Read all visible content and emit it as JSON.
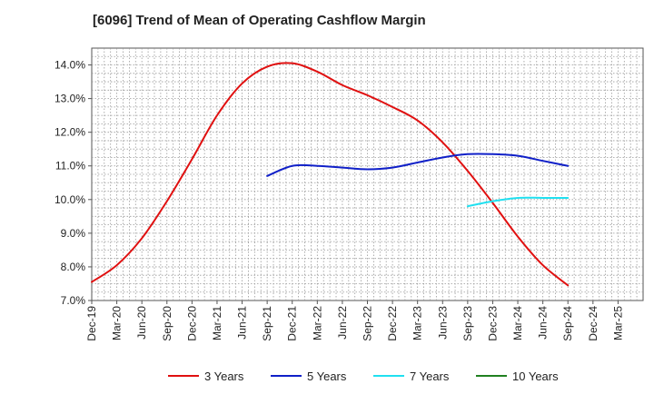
{
  "chart_data": {
    "type": "line",
    "title": "[6096]  Trend of Mean of Operating Cashflow Margin",
    "xlabel": "",
    "ylabel": "",
    "ylim": [
      7.0,
      14.5
    ],
    "yticks": [
      7.0,
      8.0,
      9.0,
      10.0,
      11.0,
      12.0,
      13.0,
      14.0
    ],
    "ytick_labels": [
      "7.0%",
      "8.0%",
      "9.0%",
      "10.0%",
      "11.0%",
      "12.0%",
      "13.0%",
      "14.0%"
    ],
    "categories": [
      "Dec-19",
      "Mar-20",
      "Jun-20",
      "Sep-20",
      "Dec-20",
      "Mar-21",
      "Jun-21",
      "Sep-21",
      "Dec-21",
      "Mar-22",
      "Jun-22",
      "Sep-22",
      "Dec-22",
      "Mar-23",
      "Jun-23",
      "Sep-23",
      "Dec-23",
      "Mar-24",
      "Jun-24",
      "Sep-24",
      "Dec-24",
      "Mar-25"
    ],
    "grid": true,
    "legend": "bottom",
    "series": [
      {
        "name": "3 Years",
        "color": "#e01010",
        "values": [
          7.55,
          8.05,
          8.85,
          9.95,
          11.2,
          12.5,
          13.45,
          13.95,
          14.05,
          13.8,
          13.4,
          13.1,
          12.75,
          12.35,
          11.7,
          10.85,
          9.9,
          8.9,
          8.05,
          7.45,
          null,
          null
        ]
      },
      {
        "name": "5 Years",
        "color": "#1020c8",
        "values": [
          null,
          null,
          null,
          null,
          null,
          null,
          null,
          10.7,
          11.0,
          11.0,
          10.95,
          10.9,
          10.95,
          11.1,
          11.25,
          11.35,
          11.35,
          11.3,
          11.15,
          11.0,
          null,
          null
        ]
      },
      {
        "name": "7 Years",
        "color": "#20e0f0",
        "values": [
          null,
          null,
          null,
          null,
          null,
          null,
          null,
          null,
          null,
          null,
          null,
          null,
          null,
          null,
          null,
          9.8,
          9.95,
          10.05,
          10.05,
          10.05,
          null,
          null
        ]
      },
      {
        "name": "10 Years",
        "color": "#208020",
        "values": [
          null,
          null,
          null,
          null,
          null,
          null,
          null,
          null,
          null,
          null,
          null,
          null,
          null,
          null,
          null,
          null,
          null,
          null,
          null,
          null,
          null,
          null
        ]
      }
    ]
  }
}
